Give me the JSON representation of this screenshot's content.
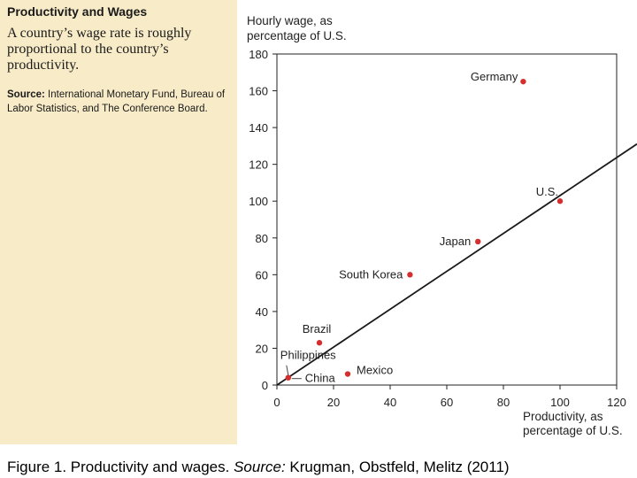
{
  "sidebar": {
    "title": "Productivity and Wages",
    "description": "A country’s wage rate is roughly proportional to the country’s productivity.",
    "source_label": "Source:",
    "source_text": "International Monetary Fund, Bureau of Labor Statistics, and The Conference Board."
  },
  "caption": {
    "main": "Figure 1. Productivity and wages. ",
    "source_label": "Source:",
    "source_text": " Krugman, Obstfeld, Melitz (2011)"
  },
  "colors": {
    "panel_background": "#f8ebc8",
    "point": "#d32f2f",
    "line": "#1a1a1a"
  },
  "chart_data": {
    "type": "scatter",
    "ylabel_lines": [
      "Hourly wage, as",
      "percentage of U.S."
    ],
    "xlabel_lines": [
      "Productivity, as",
      "percentage of U.S."
    ],
    "xlim": [
      0,
      120
    ],
    "ylim": [
      0,
      180
    ],
    "x_ticks": [
      0,
      20,
      40,
      60,
      80,
      100,
      120
    ],
    "y_ticks": [
      0,
      20,
      40,
      60,
      80,
      100,
      120,
      140,
      160,
      180
    ],
    "grid": false,
    "reference_line": {
      "from": [
        0,
        0
      ],
      "to": [
        120,
        120
      ]
    },
    "points": [
      {
        "label": "Germany",
        "x": 87,
        "y": 165
      },
      {
        "label": "U.S.",
        "x": 100,
        "y": 100
      },
      {
        "label": "Japan",
        "x": 71,
        "y": 78
      },
      {
        "label": "South Korea",
        "x": 47,
        "y": 60
      },
      {
        "label": "Brazil",
        "x": 15,
        "y": 23
      },
      {
        "label": "Philippines",
        "x": 4,
        "y": 4
      },
      {
        "label": "China",
        "x": 4,
        "y": 4
      },
      {
        "label": "Mexico",
        "x": 25,
        "y": 6
      }
    ]
  }
}
